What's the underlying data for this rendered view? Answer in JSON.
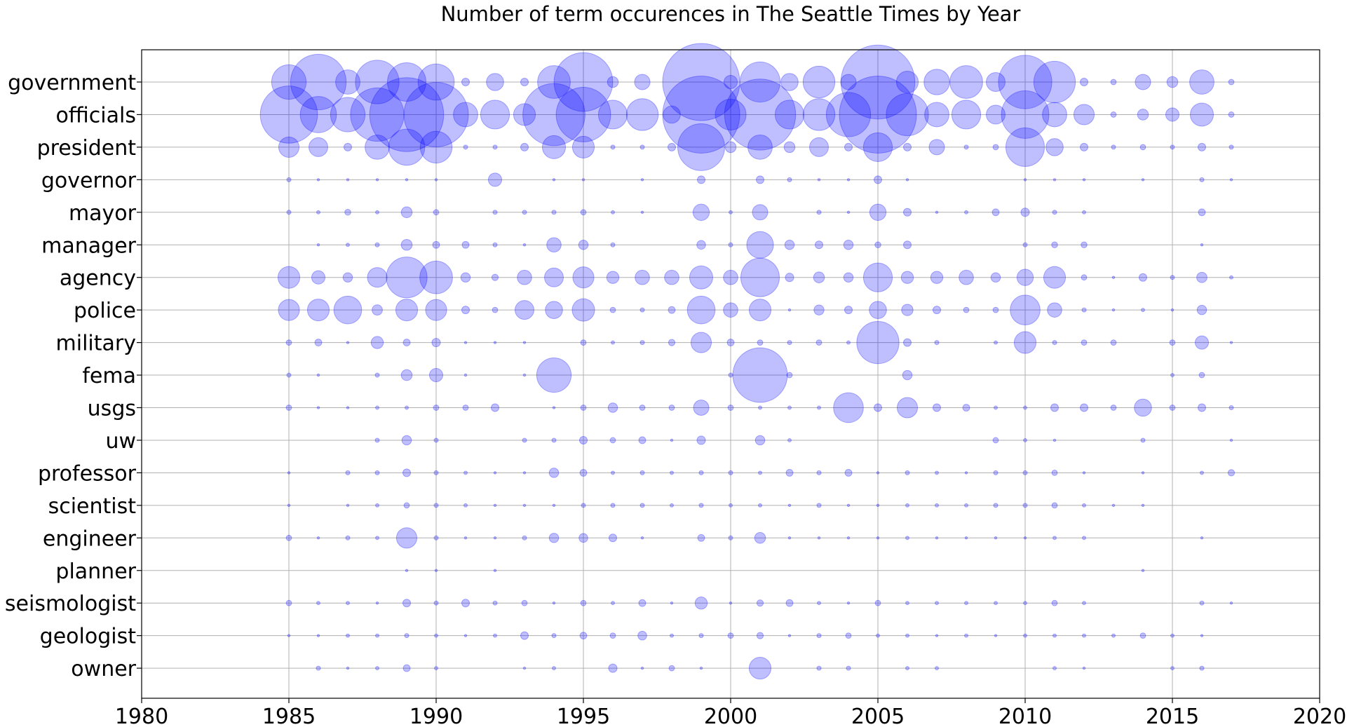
{
  "chart_data": {
    "type": "scatter",
    "title": "Number of term occurences in The Seattle Times by Year",
    "xlabel": "",
    "ylabel": "",
    "xlim": [
      1980,
      2020
    ],
    "x_ticks": [
      "1980",
      "1985",
      "1990",
      "1995",
      "2000",
      "2005",
      "2010",
      "2015",
      "2020"
    ],
    "grid": true,
    "legend": "none",
    "color": "#0000ff",
    "years": [
      1985,
      1986,
      1987,
      1988,
      1989,
      1990,
      1991,
      1992,
      1993,
      1994,
      1995,
      1996,
      1997,
      1998,
      1999,
      2000,
      2001,
      2002,
      2003,
      2004,
      2005,
      2006,
      2007,
      2008,
      2009,
      2010,
      2011,
      2012,
      2013,
      2014,
      2015,
      2016,
      2017
    ],
    "terms": [
      "government",
      "officials",
      "president",
      "governor",
      "mayor",
      "manager",
      "agency",
      "police",
      "military",
      "fema",
      "usgs",
      "uw",
      "professor",
      "scientist",
      "engineer",
      "planner",
      "seismologist",
      "geologist",
      "owner"
    ],
    "series": [
      {
        "name": "government",
        "values": [
          20,
          52,
          10,
          32,
          25,
          22,
          1,
          5,
          1,
          18,
          58,
          2,
          4,
          0,
          100,
          3,
          27,
          5,
          17,
          4,
          92,
          8,
          11,
          18,
          6,
          48,
          29,
          1,
          0.5,
          4,
          2,
          10,
          0.5
        ]
      },
      {
        "name": "officials",
        "values": [
          55,
          22,
          20,
          48,
          92,
          70,
          10,
          14,
          8,
          65,
          50,
          14,
          17,
          5,
          100,
          16,
          85,
          14,
          17,
          33,
          100,
          30,
          10,
          14,
          6,
          38,
          10,
          7,
          0.5,
          2,
          3,
          9,
          0.5
        ]
      },
      {
        "name": "president",
        "values": [
          7,
          6,
          1,
          10,
          22,
          17,
          0.3,
          0.3,
          1,
          9,
          8,
          0.3,
          0.3,
          1,
          37,
          2,
          10,
          2,
          6,
          1,
          14,
          1,
          4,
          0.3,
          0.5,
          25,
          5,
          1,
          0.3,
          0.5,
          0.3,
          1,
          0.3
        ]
      },
      {
        "name": "governor",
        "values": [
          0.3,
          0.1,
          0.1,
          0.1,
          0.1,
          0.1,
          0,
          3,
          0,
          0.1,
          0.1,
          0,
          0.1,
          0,
          1,
          0,
          1,
          0.3,
          0.1,
          0.1,
          1,
          0.1,
          0,
          0,
          0,
          0.1,
          0.1,
          0.1,
          0,
          0.1,
          0,
          0.3,
          0.1
        ]
      },
      {
        "name": "mayor",
        "values": [
          0.3,
          0.2,
          0.6,
          0.2,
          2,
          0.5,
          0,
          0.3,
          0.3,
          0.3,
          0.5,
          0.2,
          0.1,
          0,
          4.5,
          0.2,
          4,
          0,
          0.3,
          0.1,
          4.5,
          1,
          0.1,
          0.2,
          0.8,
          1.2,
          0.3,
          0.2,
          0,
          0,
          0,
          0.8,
          0
        ]
      },
      {
        "name": "manager",
        "values": [
          0,
          0.1,
          0.2,
          0.3,
          2,
          0.8,
          0.8,
          0.3,
          0.1,
          3.5,
          1.5,
          0.3,
          0,
          0,
          1.3,
          0.3,
          12,
          1.5,
          1,
          1.5,
          0.6,
          1,
          0,
          0,
          0,
          0.3,
          0.6,
          0.6,
          0,
          0,
          0,
          0.1,
          0
        ]
      },
      {
        "name": "agency",
        "values": [
          8,
          3,
          1.5,
          6.5,
          28,
          18,
          1.5,
          0.7,
          3.5,
          6,
          7.5,
          2.5,
          3.5,
          3.5,
          9,
          3.5,
          25,
          1.2,
          2,
          1.5,
          14,
          2.5,
          2.5,
          3.5,
          1.5,
          4.5,
          8,
          0.5,
          0.1,
          1,
          0.3,
          1.8,
          0.2
        ]
      },
      {
        "name": "police",
        "values": [
          7.5,
          8,
          13,
          1.8,
          8,
          7.5,
          1,
          0.5,
          6,
          5,
          8.5,
          0.5,
          0.3,
          0.8,
          13,
          3.5,
          8,
          0.1,
          1.7,
          1,
          5,
          2.2,
          1,
          0.5,
          0.5,
          15,
          3.5,
          0.3,
          0.1,
          0.2,
          0.1,
          1.5,
          0
        ]
      },
      {
        "name": "military",
        "values": [
          0.5,
          0.8,
          0.1,
          2.5,
          0.8,
          1.2,
          0.1,
          0.1,
          0.1,
          0,
          0.5,
          0.2,
          0.3,
          0.7,
          7,
          0.8,
          0.5,
          0.3,
          0.5,
          0.2,
          30,
          1,
          0.3,
          0,
          0.2,
          8,
          0.3,
          0.5,
          0.5,
          0,
          0.5,
          3,
          0.1
        ]
      },
      {
        "name": "fema",
        "values": [
          0.3,
          0.1,
          0,
          0.3,
          2,
          3,
          0.1,
          0,
          0.1,
          20,
          0,
          0,
          0,
          0,
          0,
          0.3,
          50,
          0.5,
          0,
          0,
          0,
          1.5,
          0,
          0,
          0,
          0,
          0,
          0,
          0,
          0,
          0.2,
          0.5,
          0
        ]
      },
      {
        "name": "usgs",
        "values": [
          0.5,
          0.1,
          0.1,
          0.2,
          0.2,
          0.5,
          0.5,
          1,
          0,
          0.1,
          0.5,
          1.5,
          0.5,
          0.5,
          4,
          0.5,
          0.2,
          0.2,
          0.2,
          15,
          1,
          7,
          1,
          0.8,
          0.2,
          0.2,
          1,
          1,
          0.5,
          5,
          0.5,
          1,
          0.3
        ]
      },
      {
        "name": "uw",
        "values": [
          0,
          0,
          0,
          0.3,
          1.5,
          0.3,
          0,
          0,
          0.3,
          0.3,
          1,
          0.5,
          0.8,
          0.1,
          1.2,
          0,
          1.5,
          0.2,
          0,
          0,
          0,
          0,
          0,
          0,
          0.5,
          0.2,
          0.1,
          0,
          0,
          0.3,
          0,
          0,
          0.1
        ]
      },
      {
        "name": "professor",
        "values": [
          0.1,
          0,
          0.3,
          0.3,
          1,
          0.3,
          0.2,
          0.1,
          0.1,
          1.5,
          0.8,
          0.2,
          0.3,
          0.2,
          0.3,
          0.3,
          0.2,
          0.8,
          0.3,
          0.8,
          0.1,
          0.3,
          0.2,
          0.1,
          0.3,
          0.3,
          0.5,
          0.1,
          0,
          0.1,
          0,
          0.2,
          0.7
        ]
      },
      {
        "name": "scientist",
        "values": [
          0.1,
          0,
          0.1,
          0.2,
          0.5,
          0.3,
          0.2,
          0.1,
          0.1,
          0.1,
          0.3,
          0.3,
          0.3,
          0.2,
          0.3,
          0.2,
          0.2,
          0.1,
          0.3,
          0.1,
          0.1,
          0.2,
          0.2,
          0.2,
          0.3,
          0.3,
          0.5,
          0.2,
          0.1,
          0.1,
          0,
          0,
          0
        ]
      },
      {
        "name": "engineer",
        "values": [
          0.5,
          0.1,
          0.3,
          0.2,
          7,
          0.3,
          0.1,
          0.1,
          0.3,
          1.5,
          1.3,
          1,
          0.1,
          0,
          0.8,
          0.3,
          2,
          0.1,
          0.1,
          0.1,
          0.1,
          0.2,
          0.1,
          0.1,
          0.1,
          0.1,
          0.2,
          0.2,
          0,
          0,
          0,
          0.1,
          0
        ]
      },
      {
        "name": "planner",
        "values": [
          0,
          0,
          0,
          0,
          0.1,
          0.1,
          0,
          0.1,
          0,
          0,
          0,
          0,
          0,
          0,
          0,
          0,
          0,
          0,
          0,
          0,
          0,
          0,
          0,
          0,
          0,
          0,
          0,
          0,
          0,
          0.1,
          0,
          0,
          0
        ]
      },
      {
        "name": "seismologist",
        "values": [
          0.5,
          0.2,
          0.2,
          0.1,
          1,
          0.3,
          1,
          0.3,
          0.5,
          0.1,
          0.5,
          0.2,
          0.8,
          0.1,
          2.5,
          0.1,
          0.7,
          0.8,
          0.2,
          0.1,
          0.5,
          0.2,
          0.2,
          0.2,
          0.2,
          0.2,
          0.5,
          0.2,
          0,
          0,
          0,
          0.3,
          0.1
        ]
      },
      {
        "name": "geologist",
        "values": [
          0.1,
          0.1,
          0.2,
          0.2,
          0.3,
          0.2,
          0.1,
          0.2,
          1,
          0.3,
          0.8,
          0.5,
          1.3,
          0.2,
          0.3,
          0.5,
          0.7,
          0.1,
          0.3,
          0.5,
          0.2,
          0.2,
          0.1,
          0.2,
          0.1,
          0.2,
          0.2,
          0.2,
          0.2,
          0.5,
          0.2,
          0.1,
          0
        ]
      },
      {
        "name": "owner",
        "values": [
          0,
          0.3,
          0.1,
          0.2,
          0.8,
          0.2,
          0,
          0,
          0.1,
          0.2,
          0,
          1.2,
          0.1,
          0.5,
          0.1,
          0,
          8,
          0,
          0.3,
          0.3,
          0,
          0.2,
          0.2,
          0,
          0,
          0,
          0.2,
          0.1,
          0,
          0,
          0.2,
          0.3,
          0
        ]
      }
    ]
  }
}
